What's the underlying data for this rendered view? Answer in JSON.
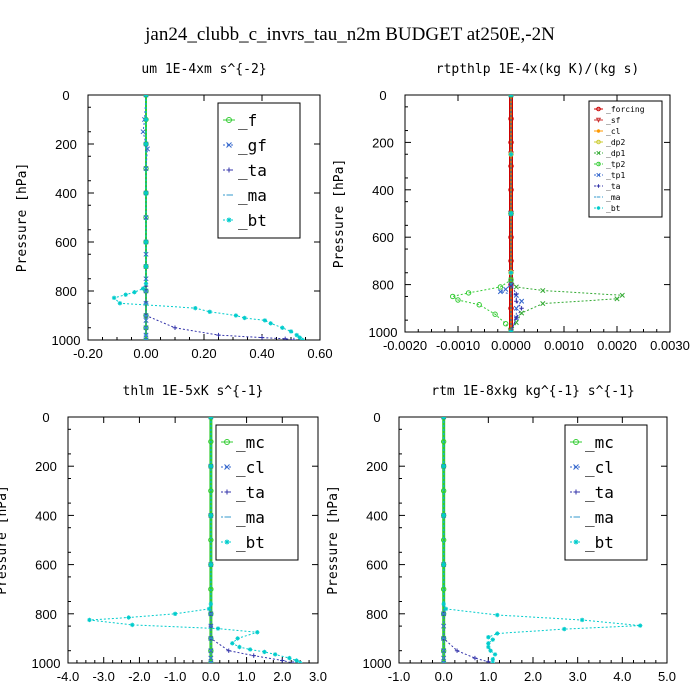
{
  "title": "jan24_clubb_c_invrs_tau_n2m  BUDGET at250E,-2N",
  "chart_data": [
    {
      "type": "line",
      "title": "um   1E-4xm s^{-2}",
      "ylabel": "Pressure [hPa]",
      "xlim": [
        -0.2,
        0.6
      ],
      "ylim": [
        1000,
        0
      ],
      "xticks": [
        "-0.20",
        "0.00",
        "0.20",
        "0.40",
        "0.60"
      ],
      "xtick_values": [
        -0.2,
        0.0,
        0.2,
        0.4,
        0.6
      ],
      "yticks": [
        "0",
        "200",
        "400",
        "600",
        "800",
        "1000"
      ],
      "ytick_values": [
        0,
        200,
        400,
        600,
        800,
        1000
      ],
      "legend": {
        "position": "top-right",
        "size": "large"
      },
      "series": [
        {
          "name": "_f",
          "color": "#33cc33",
          "marker": "o",
          "style": "solid",
          "width": 2,
          "x": [
            0,
            0,
            0,
            0,
            0,
            0,
            0,
            0,
            0,
            0,
            0,
            0
          ],
          "y": [
            0,
            100,
            200,
            300,
            400,
            500,
            600,
            700,
            800,
            900,
            950,
            1000
          ]
        },
        {
          "name": "_gf",
          "color": "#3366cc",
          "marker": "x",
          "style": "dashed",
          "width": 1,
          "x": [
            0,
            -0.005,
            -0.01,
            0.0,
            0.005,
            0.0,
            0.0,
            0.0,
            0.0,
            0.0,
            0.0,
            0.0,
            0.0,
            0.0,
            0.0,
            0.0,
            0.0,
            0.0,
            0.0
          ],
          "y": [
            0,
            100,
            150,
            200,
            220,
            300,
            400,
            500,
            600,
            650,
            700,
            750,
            800,
            850,
            900,
            920,
            950,
            980,
            1000
          ]
        },
        {
          "name": "_ta",
          "color": "#3333aa",
          "marker": "+",
          "style": "dashed",
          "width": 1,
          "x": [
            0,
            0,
            0,
            0,
            0,
            0,
            0,
            0,
            0.1,
            0.25,
            0.4,
            0.48,
            0.51
          ],
          "y": [
            0,
            200,
            400,
            600,
            780,
            800,
            850,
            900,
            950,
            980,
            990,
            995,
            1000
          ]
        },
        {
          "name": "_ma",
          "color": "#3399cc",
          "marker": "-",
          "style": "dashed",
          "width": 1,
          "x": [
            0,
            0,
            0,
            0,
            0,
            0,
            0,
            0,
            0,
            0
          ],
          "y": [
            0,
            200,
            400,
            600,
            800,
            850,
            900,
            950,
            980,
            1000
          ]
        },
        {
          "name": "_bt",
          "color": "#00cccc",
          "marker": "*",
          "style": "dashed",
          "width": 1,
          "x": [
            0,
            0,
            0,
            0,
            0,
            0,
            0,
            -0.01,
            -0.04,
            -0.07,
            -0.11,
            -0.09,
            0.17,
            0.22,
            0.31,
            0.34,
            0.41,
            0.43,
            0.47,
            0.5,
            0.52,
            0.53,
            0.54
          ],
          "y": [
            0,
            100,
            200,
            400,
            600,
            700,
            770,
            790,
            805,
            815,
            828,
            850,
            870,
            885,
            900,
            910,
            920,
            932,
            950,
            965,
            980,
            990,
            1000
          ]
        }
      ]
    },
    {
      "type": "line",
      "title": "rtpthlp   1E-4x(kg K)/(kg s)",
      "ylabel": "Pressure [hPa]",
      "xlim": [
        -0.002,
        0.003
      ],
      "ylim": [
        1000,
        0
      ],
      "xticks": [
        "-0.0020",
        "-0.0010",
        "0.0000",
        "0.0010",
        "0.0020",
        "0.0030"
      ],
      "xtick_values": [
        -0.002,
        -0.001,
        0.0,
        0.001,
        0.002,
        0.003
      ],
      "yticks": [
        "0",
        "200",
        "400",
        "600",
        "800",
        "1000"
      ],
      "ytick_values": [
        0,
        200,
        400,
        600,
        800,
        1000
      ],
      "legend": {
        "position": "top-right",
        "size": "small"
      },
      "series": [
        {
          "name": "_forcing",
          "color": "#cc0000",
          "marker": "o",
          "style": "solid",
          "width": 4,
          "x": [
            0,
            0,
            0,
            0,
            0,
            0,
            0,
            0,
            0,
            0,
            0
          ],
          "y": [
            0,
            100,
            200,
            300,
            400,
            500,
            600,
            700,
            800,
            900,
            1000
          ]
        },
        {
          "name": "_sf",
          "color": "#cc3333",
          "marker": "v",
          "style": "solid",
          "width": 1,
          "x": [
            0,
            0,
            0,
            0,
            0
          ],
          "y": [
            0,
            250,
            500,
            750,
            1000
          ]
        },
        {
          "name": "_cl",
          "color": "#ff9900",
          "marker": "*",
          "style": "solid",
          "width": 1,
          "x": [
            0,
            0,
            0,
            0,
            0
          ],
          "y": [
            0,
            250,
            500,
            750,
            1000
          ]
        },
        {
          "name": "_dp2",
          "color": "#cccc33",
          "marker": "o",
          "style": "solid",
          "width": 1,
          "x": [
            0,
            0,
            0,
            0,
            0
          ],
          "y": [
            0,
            250,
            500,
            750,
            1000
          ]
        },
        {
          "name": "_dp1",
          "color": "#33aa33",
          "marker": "x",
          "style": "dashed",
          "width": 1,
          "x": [
            0,
            0,
            0,
            0.0001,
            0.0006,
            0.0021,
            0.002,
            0.0006,
            0.0002,
            0.0001,
            0.0
          ],
          "y": [
            0,
            500,
            780,
            810,
            825,
            845,
            860,
            880,
            920,
            960,
            1000
          ]
        },
        {
          "name": "_tp2",
          "color": "#33cc33",
          "marker": "o",
          "style": "dashed",
          "width": 1,
          "x": [
            0,
            0,
            0,
            -0.0002,
            -0.0008,
            -0.0011,
            -0.001,
            -0.0006,
            -0.0003,
            -0.0001,
            0.0
          ],
          "y": [
            0,
            500,
            780,
            810,
            835,
            850,
            865,
            885,
            925,
            965,
            1000
          ]
        },
        {
          "name": "_tp1",
          "color": "#3366cc",
          "marker": "x",
          "style": "dashed",
          "width": 1,
          "x": [
            0,
            0,
            0,
            -0.0001,
            -0.0002,
            0.0001,
            0.0002,
            0.0001,
            0.0001,
            0.0
          ],
          "y": [
            0,
            500,
            800,
            820,
            830,
            845,
            870,
            900,
            940,
            1000
          ]
        },
        {
          "name": "_ta",
          "color": "#3333aa",
          "marker": "+",
          "style": "dashed",
          "width": 1,
          "x": [
            0,
            0,
            0,
            0.0001,
            0.0001,
            0.0002,
            0.0001,
            0.0
          ],
          "y": [
            0,
            500,
            800,
            840,
            870,
            900,
            940,
            1000
          ]
        },
        {
          "name": "_ma",
          "color": "#3399cc",
          "marker": "-",
          "style": "dashed",
          "width": 1,
          "x": [
            0,
            0,
            0,
            0,
            0
          ],
          "y": [
            0,
            250,
            500,
            750,
            1000
          ]
        },
        {
          "name": "_bt",
          "color": "#00cccc",
          "marker": "*",
          "style": "dashed",
          "width": 1,
          "x": [
            0,
            0,
            0,
            0,
            0
          ],
          "y": [
            0,
            250,
            500,
            750,
            1000
          ]
        }
      ]
    },
    {
      "type": "line",
      "title": "thlm   1E-5xK s^{-1}",
      "ylabel": "Pressure [hPa]",
      "xlim": [
        -4.0,
        3.0
      ],
      "ylim": [
        1000,
        0
      ],
      "xticks": [
        "-4.0",
        "-3.0",
        "-2.0",
        "-1.0",
        "0.0",
        "1.0",
        "2.0",
        "3.0"
      ],
      "xtick_values": [
        -4.0,
        -3.0,
        -2.0,
        -1.0,
        0.0,
        1.0,
        2.0,
        3.0
      ],
      "yticks": [
        "0",
        "200",
        "400",
        "600",
        "800",
        "1000"
      ],
      "ytick_values": [
        0,
        200,
        400,
        600,
        800,
        1000
      ],
      "legend": {
        "position": "top-right",
        "size": "large"
      },
      "series": [
        {
          "name": "_mc",
          "color": "#33cc33",
          "marker": "o",
          "style": "solid",
          "width": 3,
          "x": [
            0,
            0,
            0,
            0,
            0,
            0,
            0,
            0,
            0,
            0,
            0,
            0
          ],
          "y": [
            0,
            100,
            200,
            300,
            400,
            500,
            600,
            700,
            800,
            900,
            950,
            1000
          ]
        },
        {
          "name": "_cl",
          "color": "#3366cc",
          "marker": "x",
          "style": "dashed",
          "width": 1,
          "x": [
            0,
            0,
            0,
            0,
            0,
            0,
            0,
            0,
            0,
            0
          ],
          "y": [
            0,
            200,
            400,
            600,
            800,
            850,
            900,
            950,
            980,
            1000
          ]
        },
        {
          "name": "_ta",
          "color": "#3333aa",
          "marker": "+",
          "style": "dashed",
          "width": 1,
          "x": [
            0,
            0,
            0,
            0,
            0,
            0,
            0,
            0.5,
            1.2,
            2.0,
            2.3
          ],
          "y": [
            0,
            200,
            400,
            600,
            800,
            850,
            900,
            950,
            970,
            990,
            1000
          ]
        },
        {
          "name": "_ma",
          "color": "#3399cc",
          "marker": "-",
          "style": "dashed",
          "width": 1,
          "x": [
            0,
            0,
            0,
            0,
            0,
            0,
            0
          ],
          "y": [
            0,
            200,
            400,
            600,
            800,
            900,
            1000
          ]
        },
        {
          "name": "_bt",
          "color": "#00cccc",
          "marker": "*",
          "style": "dashed",
          "width": 1,
          "x": [
            0,
            0,
            0,
            0,
            0,
            -0.05,
            -1.0,
            -2.3,
            -3.4,
            -2.2,
            0.2,
            1.3,
            0.75,
            0.6,
            0.8,
            1.1,
            1.5,
            1.8,
            2.2,
            2.4,
            2.5
          ],
          "y": [
            0,
            200,
            400,
            600,
            760,
            780,
            800,
            815,
            825,
            845,
            860,
            875,
            900,
            920,
            935,
            945,
            955,
            965,
            980,
            990,
            1000
          ]
        }
      ]
    },
    {
      "type": "line",
      "title": "rtm   1E-8xkg kg^{-1} s^{-1}",
      "ylabel": "Pressure [hPa]",
      "xlim": [
        -1.0,
        5.0
      ],
      "ylim": [
        1000,
        0
      ],
      "xticks": [
        "-1.0",
        "0.0",
        "1.0",
        "2.0",
        "3.0",
        "4.0",
        "5.0"
      ],
      "xtick_values": [
        -1.0,
        0.0,
        1.0,
        2.0,
        3.0,
        4.0,
        5.0
      ],
      "yticks": [
        "0",
        "200",
        "400",
        "600",
        "800",
        "1000"
      ],
      "ytick_values": [
        0,
        200,
        400,
        600,
        800,
        1000
      ],
      "legend": {
        "position": "top-right",
        "size": "large"
      },
      "series": [
        {
          "name": "_mc",
          "color": "#33cc33",
          "marker": "o",
          "style": "solid",
          "width": 3,
          "x": [
            0,
            0,
            0,
            0,
            0,
            0,
            0,
            0,
            0,
            0,
            0,
            0
          ],
          "y": [
            0,
            100,
            200,
            300,
            400,
            500,
            600,
            700,
            800,
            900,
            950,
            1000
          ]
        },
        {
          "name": "_cl",
          "color": "#3366cc",
          "marker": "x",
          "style": "dashed",
          "width": 1,
          "x": [
            0,
            0,
            0,
            0,
            0,
            0,
            0,
            0,
            0,
            0
          ],
          "y": [
            0,
            200,
            400,
            600,
            800,
            850,
            900,
            950,
            980,
            1000
          ]
        },
        {
          "name": "_ta",
          "color": "#3333aa",
          "marker": "+",
          "style": "dashed",
          "width": 1,
          "x": [
            0,
            0,
            0,
            0,
            0,
            0,
            0.3,
            0.7,
            1.0,
            1.1
          ],
          "y": [
            0,
            200,
            400,
            600,
            800,
            900,
            950,
            980,
            995,
            1000
          ]
        },
        {
          "name": "_ma",
          "color": "#3399cc",
          "marker": "-",
          "style": "dashed",
          "width": 1,
          "x": [
            0,
            0,
            0,
            0,
            0,
            0,
            0
          ],
          "y": [
            0,
            200,
            400,
            600,
            800,
            900,
            1000
          ]
        },
        {
          "name": "_bt",
          "color": "#00cccc",
          "marker": "*",
          "style": "dashed",
          "width": 1,
          "x": [
            0,
            0,
            0,
            0,
            0,
            0.05,
            1.2,
            3.1,
            4.4,
            2.7,
            1.2,
            1.0,
            1.1,
            1.0,
            1.0,
            1.05,
            1.15,
            1.1,
            1.1
          ],
          "y": [
            0,
            200,
            400,
            600,
            760,
            780,
            805,
            825,
            848,
            862,
            880,
            895,
            905,
            920,
            935,
            950,
            965,
            985,
            1000
          ]
        }
      ]
    }
  ]
}
